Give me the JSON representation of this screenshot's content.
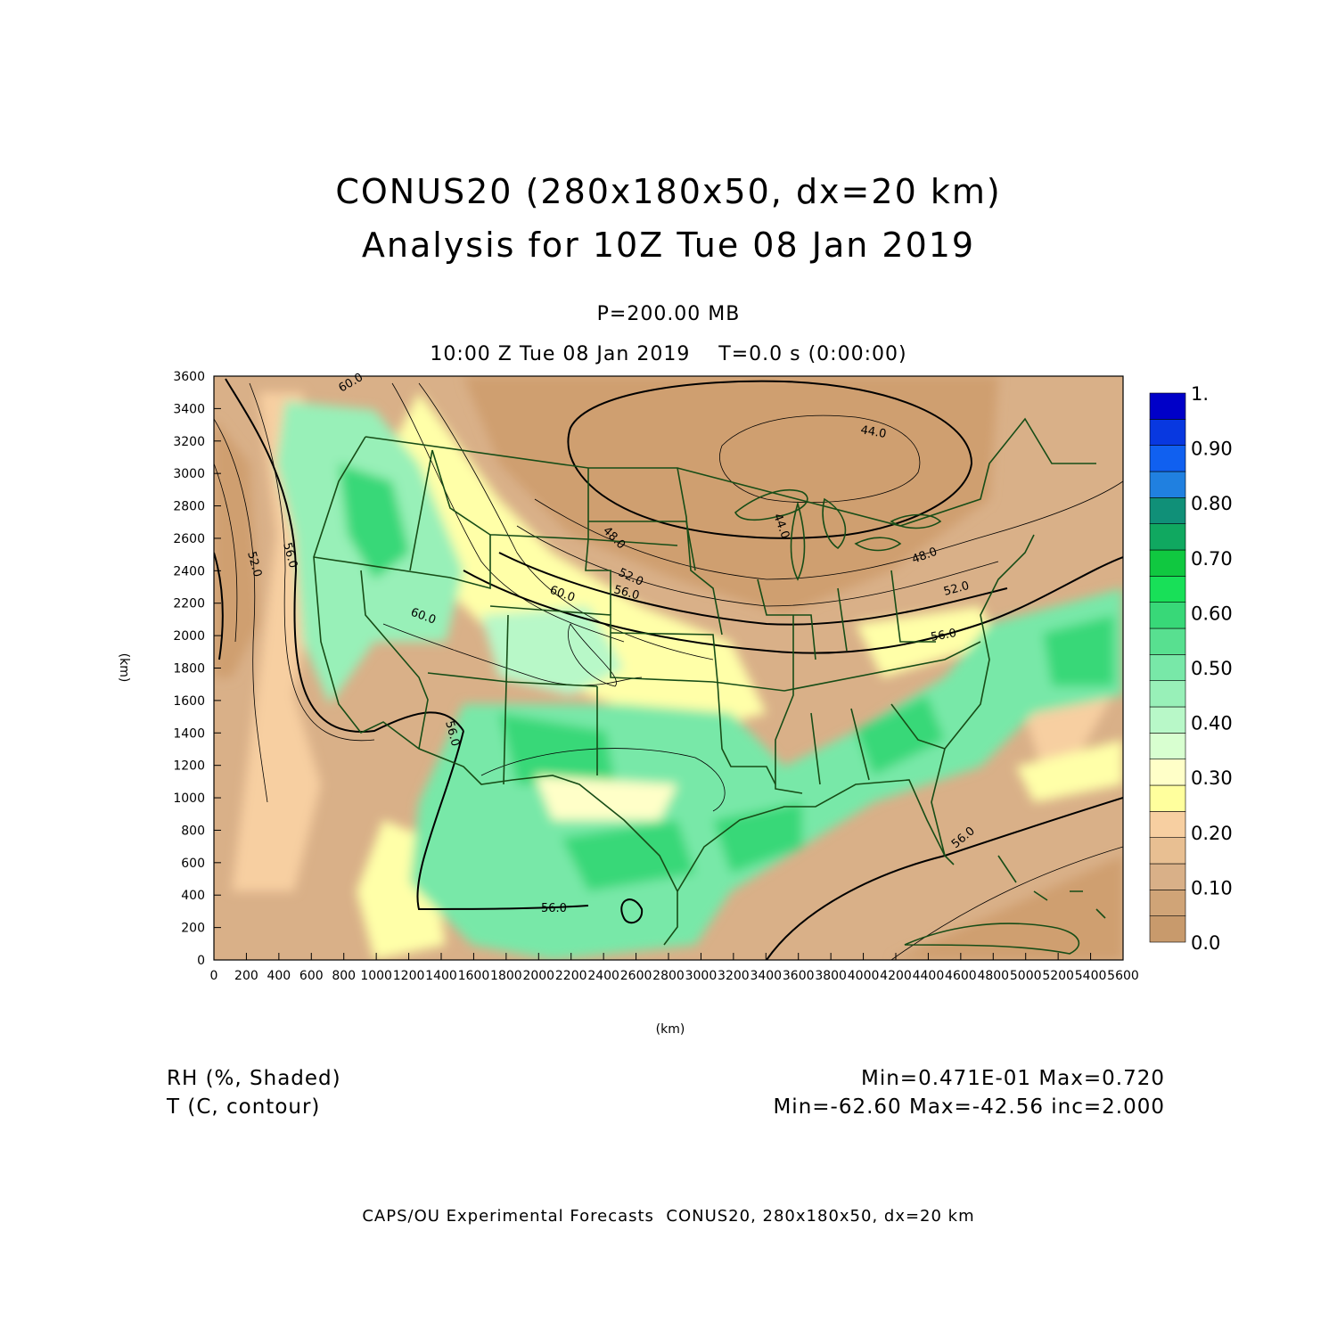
{
  "header": {
    "title_line1": "CONUS20 (280x180x50, dx=20 km)",
    "title_line2": "Analysis for 10Z Tue 08 Jan 2019",
    "level": "P=200.00 MB",
    "valid_time": "10:00 Z Tue 08 Jan 2019    T=0.0 s (0:00:00)"
  },
  "axes": {
    "xlabel": "(km)",
    "ylabel": "(km)",
    "x_ticks": [
      "0",
      "200",
      "400",
      "600",
      "800",
      "1000",
      "1200",
      "1400",
      "1600",
      "1800",
      "2000",
      "2200",
      "2400",
      "2600",
      "2800",
      "3000",
      "3200",
      "3400",
      "3600",
      "3800",
      "4000",
      "4200",
      "4400",
      "4600",
      "4800",
      "5000",
      "5200",
      "5400",
      "5600"
    ],
    "y_ticks": [
      "0",
      "200",
      "400",
      "600",
      "800",
      "1000",
      "1200",
      "1400",
      "1600",
      "1800",
      "2000",
      "2200",
      "2400",
      "2600",
      "2800",
      "3000",
      "3200",
      "3400",
      "3600"
    ]
  },
  "colorbar": {
    "labels": [
      "0.0",
      "0.10",
      "0.20",
      "0.30",
      "0.40",
      "0.50",
      "0.60",
      "0.70",
      "0.80",
      "0.90",
      "1."
    ],
    "colors": [
      "#c89a6c",
      "#d0a477",
      "#d9b088",
      "#e8bf92",
      "#f7cfa1",
      "#ffff9d",
      "#ffffc8",
      "#d8ffd0",
      "#b8f8c8",
      "#98f0b8",
      "#78e8a8",
      "#58e090",
      "#38d878",
      "#18e058",
      "#10c840",
      "#10a860",
      "#109078",
      "#2080e0",
      "#1060f0",
      "#0838e0",
      "#0000c8"
    ]
  },
  "contour_labels": [
    "60.0",
    "52.0",
    "56.0",
    "48.0",
    "52.0",
    "56.0",
    "60.0",
    "60.0",
    "44.0",
    "44.0",
    "48.0",
    "52.0",
    "56.0",
    "56.0",
    "56.0",
    "56.0"
  ],
  "stats": {
    "field1_name": "RH (%, Shaded)",
    "field1_range": "Min=0.471E-01 Max=0.720",
    "field2_name": "T (C, contour)",
    "field2_range": "Min=-62.60 Max=-42.56 inc=2.000"
  },
  "footer": "CAPS/OU Experimental Forecasts  CONUS20, 280x180x50, dx=20 km"
}
